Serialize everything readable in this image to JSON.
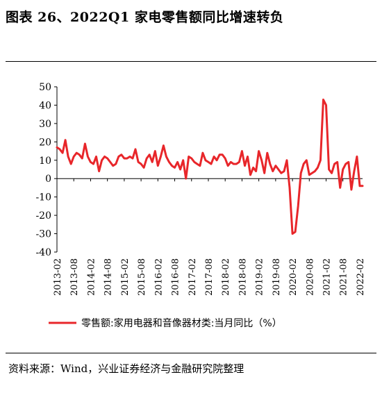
{
  "figure_title": "图表 26、2022Q1 家电零售额同比增速转负",
  "source": "资料来源：Wind，兴业证券经济与金融研究院整理",
  "colors": {
    "line": "#e8262a",
    "axis": "#000000"
  },
  "chart_data": {
    "type": "line",
    "x_label_format": "YYYY-MM",
    "y_ticks": [
      50,
      40,
      30,
      20,
      10,
      0,
      -10,
      -20,
      -30,
      -40
    ],
    "ylim": [
      -40,
      50
    ],
    "x_tick_labels": [
      "2013-02",
      "2013-08",
      "2014-02",
      "2014-08",
      "2015-02",
      "2015-08",
      "2016-02",
      "2016-08",
      "2017-02",
      "2017-08",
      "2018-02",
      "2018-08",
      "2019-02",
      "2019-08",
      "2020-02",
      "2020-08",
      "2021-02",
      "2021-08",
      "2022-02"
    ],
    "grid": false,
    "legend_position": "bottom",
    "series": [
      {
        "name": "零售额:家用电器和音像器材类:当月同比（%）",
        "x": [
          "2013-02",
          "2013-03",
          "2013-04",
          "2013-05",
          "2013-06",
          "2013-07",
          "2013-08",
          "2013-09",
          "2013-10",
          "2013-11",
          "2013-12",
          "2014-01",
          "2014-02",
          "2014-03",
          "2014-04",
          "2014-05",
          "2014-06",
          "2014-07",
          "2014-08",
          "2014-09",
          "2014-10",
          "2014-11",
          "2014-12",
          "2015-01",
          "2015-02",
          "2015-03",
          "2015-04",
          "2015-05",
          "2015-06",
          "2015-07",
          "2015-08",
          "2015-09",
          "2015-10",
          "2015-11",
          "2015-12",
          "2016-01",
          "2016-02",
          "2016-03",
          "2016-04",
          "2016-05",
          "2016-06",
          "2016-07",
          "2016-08",
          "2016-09",
          "2016-10",
          "2016-11",
          "2016-12",
          "2017-01",
          "2017-02",
          "2017-03",
          "2017-04",
          "2017-05",
          "2017-06",
          "2017-07",
          "2017-08",
          "2017-09",
          "2017-10",
          "2017-11",
          "2017-12",
          "2018-01",
          "2018-02",
          "2018-03",
          "2018-04",
          "2018-05",
          "2018-06",
          "2018-07",
          "2018-08",
          "2018-09",
          "2018-10",
          "2018-11",
          "2018-12",
          "2019-01",
          "2019-02",
          "2019-03",
          "2019-04",
          "2019-05",
          "2019-06",
          "2019-07",
          "2019-08",
          "2019-09",
          "2019-10",
          "2019-11",
          "2019-12",
          "2020-01",
          "2020-02",
          "2020-03",
          "2020-04",
          "2020-05",
          "2020-06",
          "2020-07",
          "2020-08",
          "2020-09",
          "2020-10",
          "2020-11",
          "2020-12",
          "2021-01",
          "2021-02",
          "2021-03",
          "2021-04",
          "2021-05",
          "2021-06",
          "2021-07",
          "2021-08",
          "2021-09",
          "2021-10",
          "2021-11",
          "2021-12",
          "2022-01",
          "2022-02",
          "2022-03"
        ],
        "values": [
          17,
          16,
          14,
          21,
          12,
          8,
          12,
          14,
          13,
          11,
          19,
          12,
          9,
          8,
          12,
          4,
          10,
          12,
          11,
          9,
          7,
          8,
          12,
          13,
          11,
          11,
          12,
          11,
          16,
          9,
          8,
          6,
          11,
          13,
          9,
          15,
          7,
          12,
          18,
          12,
          9,
          7,
          6,
          9,
          5,
          10,
          0,
          12,
          11,
          9,
          8,
          7,
          14,
          10,
          9,
          8,
          12,
          10,
          13,
          13,
          11,
          7,
          9,
          8,
          8,
          9,
          15,
          7,
          12,
          2,
          6,
          4,
          15,
          10,
          3,
          14,
          8,
          4,
          7,
          5,
          3,
          4,
          10,
          -5,
          -30,
          -29,
          -15,
          3,
          8,
          10,
          2,
          3,
          4,
          6,
          10,
          43,
          40,
          5,
          3,
          8,
          9,
          -5,
          5,
          8,
          9,
          -6,
          4,
          12,
          -4,
          -4
        ]
      }
    ]
  }
}
